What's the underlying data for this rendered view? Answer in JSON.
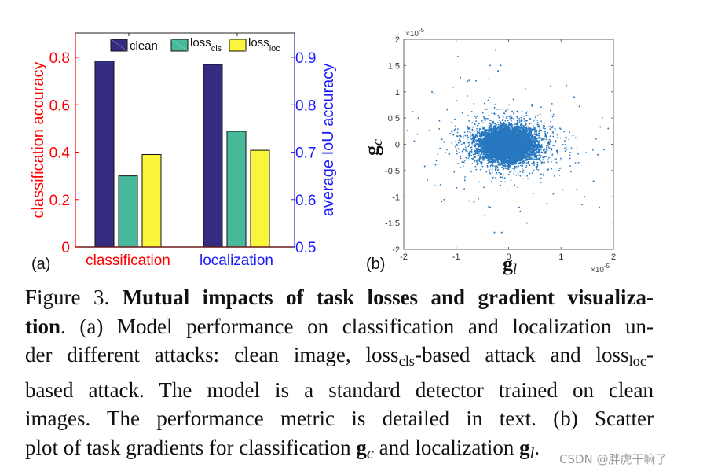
{
  "chart_data": [
    {
      "type": "bar",
      "panel_label": "(a)",
      "categories": [
        "classification",
        "localization"
      ],
      "category_colors": [
        "#ff0000",
        "#1a1aff"
      ],
      "series": [
        {
          "name": "clean",
          "color": "#342c80",
          "values": [
            0.785,
            0.885
          ]
        },
        {
          "name": "loss_cls",
          "color": "#48b99b",
          "values": [
            0.3,
            0.744
          ]
        },
        {
          "name": "loss_loc",
          "color": "#f8f53b",
          "values": [
            0.39,
            0.704
          ]
        }
      ],
      "value_axes": [
        "left",
        "right"
      ],
      "legend": [
        {
          "label": "loss",
          "sub": "",
          "main": "clean"
        },
        {
          "main": "loss",
          "sub": "cls"
        },
        {
          "main": "loss",
          "sub": "loc"
        }
      ],
      "ylabel": "classification accuracy",
      "ylabel_color": "#ff0000",
      "yticks": [
        "0",
        "0.2",
        "0.4",
        "0.6",
        "0.8"
      ],
      "ylim": [
        0,
        0.9
      ],
      "y2label": "average IoU accuracy",
      "y2label_color": "#1a1aff",
      "y2ticks": [
        "0.5",
        "0.6",
        "0.7",
        "0.8",
        "0.9"
      ],
      "y2lim": [
        0.5,
        0.95
      ],
      "grid": false,
      "legend_position": "top"
    },
    {
      "type": "scatter",
      "panel_label": "(b)",
      "xlabel": "g_l",
      "ylabel": "g_c",
      "xlim": [
        -2e-05,
        2e-05
      ],
      "ylim": [
        -2e-05,
        2e-05
      ],
      "xticks": [
        "-2",
        "-1",
        "0",
        "1",
        "2"
      ],
      "yticks": [
        "-2",
        "-1.5",
        "-1",
        "-0.5",
        "0",
        "0.5",
        "1",
        "1.5",
        "2"
      ],
      "x_exponent": "×10^-5",
      "y_exponent": "×10^-5",
      "color": "#2878c0",
      "description": "dense cluster centered at (0,0), x spread about ±0.6e-5, y spread about ±0.3e-5, sparse outliers to about ±1.9e-5 in x and ±1.8e-5 in y",
      "outliers": [
        [
          -0.25,
          1.8
        ],
        [
          -0.97,
          1.67
        ],
        [
          -0.35,
          1.5
        ],
        [
          -0.15,
          1.5
        ],
        [
          -0.2,
          1.4
        ],
        [
          -0.92,
          1.27
        ],
        [
          -0.78,
          1.2
        ],
        [
          -0.75,
          1.22
        ],
        [
          -0.62,
          1.21
        ],
        [
          1.1,
          1.12
        ],
        [
          -1.46,
          1.0
        ],
        [
          1.25,
          0.9
        ],
        [
          1.35,
          0.72
        ],
        [
          -1.83,
          0.62
        ],
        [
          -1.72,
          0.5
        ],
        [
          -1.93,
          0.26
        ],
        [
          -1.8,
          0.06
        ],
        [
          1.75,
          0.33
        ],
        [
          1.9,
          0.3
        ],
        [
          1.82,
          -0.1
        ],
        [
          1.7,
          -0.2
        ],
        [
          -1.6,
          -0.42
        ],
        [
          -1.55,
          -0.68
        ],
        [
          -0.66,
          -1.1
        ],
        [
          -0.35,
          -1.2
        ],
        [
          0.2,
          -1.2
        ],
        [
          0.35,
          -1.5
        ],
        [
          -0.27,
          -1.68
        ],
        [
          -0.13,
          -1.68
        ],
        [
          1.45,
          -1.0
        ],
        [
          1.4,
          -1.15
        ],
        [
          1.73,
          -1.2
        ],
        [
          0.73,
          -1.13
        ],
        [
          1.62,
          -0.7
        ]
      ]
    }
  ],
  "figure": {
    "panel_a_label": "(a)",
    "panel_b_label": "(b)",
    "legend_clean": "clean",
    "legend_loss": "loss",
    "legend_cls": "cls",
    "legend_loc": "loc",
    "scatter_exponent": "×10",
    "scatter_exponent_power": "-5",
    "scatter_xlabel": "g",
    "scatter_xlabel_sub": "l",
    "scatter_ylabel": "g",
    "scatter_ylabel_sub": "c"
  },
  "caption": {
    "line1_prefix": "Figure 3. ",
    "line1_bold": "Mutual impacts of task losses and gradient visualiza-",
    "line2_bold": "tion",
    "line2_rest": ". (a) Model performance on classification and localization un-",
    "line3_a": "der different attacks: clean image, loss",
    "line3_sub1": "cls",
    "line3_b": "-based attack and loss",
    "line3_sub2": "loc",
    "line3_c": "-",
    "line4": "based attack.  The model is a standard detector trained on clean",
    "line5": "images.  The performance metric is detailed in text.  (b) Scatter",
    "line6_a": "plot of task gradients for classification ",
    "line6_g1": "g",
    "line6_sub1": "c",
    "line6_b": " and localization ",
    "line6_g2": "g",
    "line6_sub2": "l",
    "line6_c": "."
  },
  "watermark": "CSDN @胖虎干嘛了"
}
